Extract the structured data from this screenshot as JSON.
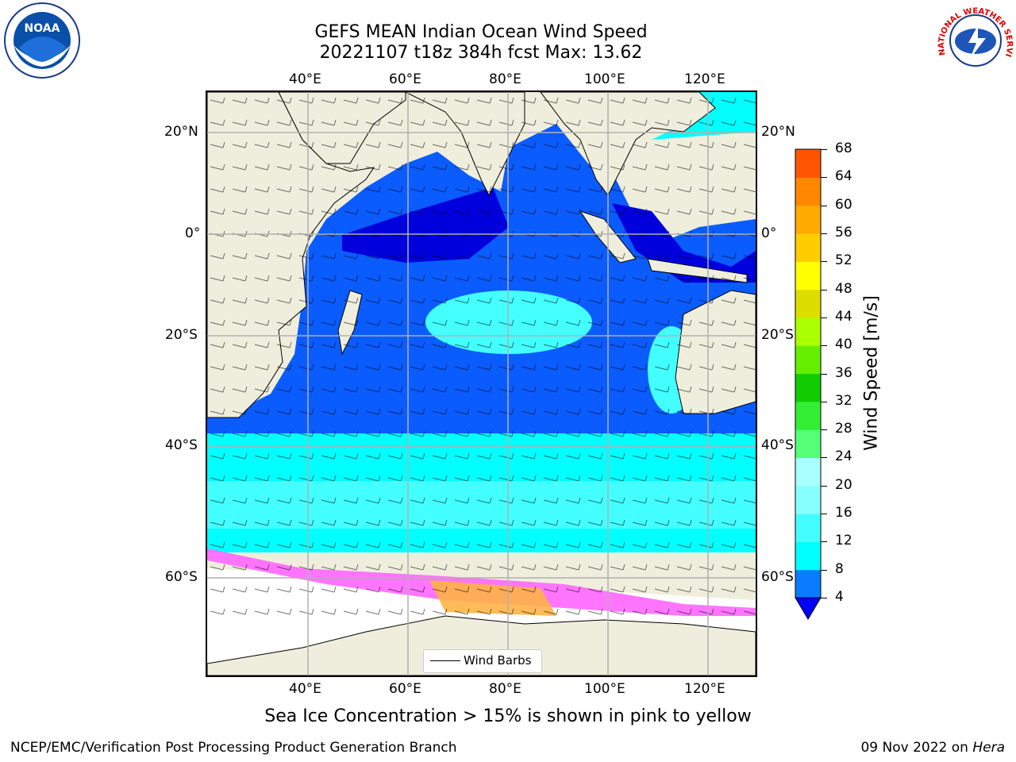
{
  "title_line1": "GEFS MEAN Indian Ocean Wind Speed",
  "title_line2": "20221107 t18z 384h fcst   Max: 13.62",
  "logos": {
    "left": "NOAA",
    "right": "NATIONAL WEATHER SERVICE"
  },
  "map": {
    "lon_labels_top": [
      "40°E",
      "60°E",
      "80°E",
      "100°E",
      "120°E"
    ],
    "lon_labels_bottom": [
      "40°E",
      "60°E",
      "80°E",
      "100°E",
      "120°E"
    ],
    "lat_labels_left": [
      "20°N",
      "0°",
      "20°S",
      "40°S",
      "60°S"
    ],
    "lat_labels_right": [
      "20°N",
      "0°",
      "20°S",
      "40°S",
      "60°S"
    ],
    "legend": "Wind Barbs",
    "colors": {
      "land": "#efeedd",
      "low": "#0a5cff",
      "lowest": "#0000dd",
      "mid": "#00ffff",
      "ice": "#ff66ff",
      "ice2": "#ffb347"
    }
  },
  "colorbar": {
    "label": "Wind Speed [m/s]",
    "ticks": [
      "4",
      "8",
      "12",
      "16",
      "20",
      "24",
      "28",
      "32",
      "36",
      "40",
      "44",
      "48",
      "52",
      "56",
      "60",
      "64",
      "68"
    ],
    "colors": [
      "#0a7cff",
      "#00ffff",
      "#44ffff",
      "#88ffff",
      "#aaffff",
      "#55ff77",
      "#33ee33",
      "#11cc00",
      "#66ee00",
      "#aaff00",
      "#dddd00",
      "#ffff00",
      "#ffcc00",
      "#ffaa00",
      "#ff8800",
      "#ff5500",
      "#ff2200",
      "#ff0000"
    ]
  },
  "caption": "Sea Ice Concentration > 15% is shown in pink to yellow",
  "credit": "NCEP/EMC/Verification Post Processing Product Generation Branch",
  "date_text": "09 Nov 2022 on",
  "host": "Hera"
}
